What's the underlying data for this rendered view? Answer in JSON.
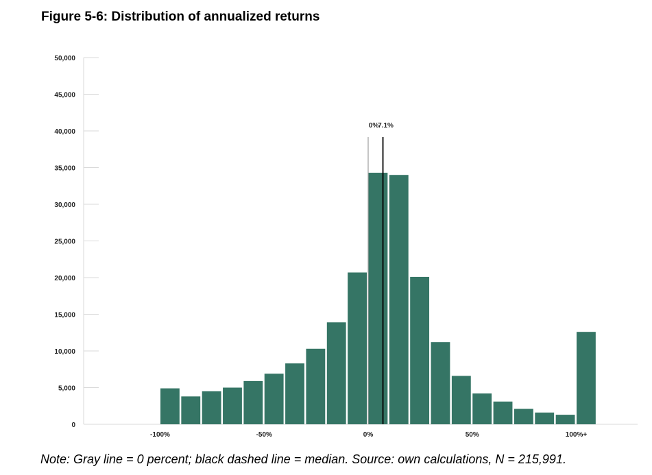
{
  "chart_data": {
    "type": "bar",
    "title": "Figure 5-6: Distribution of annualized returns",
    "xlabel": "",
    "ylabel": "",
    "ylim": [
      0,
      50000
    ],
    "y_ticks": [
      "0",
      "5,000",
      "10,000",
      "15,000",
      "20,000",
      "25,000",
      "30,000",
      "35,000",
      "40,000",
      "45,000",
      "50,000"
    ],
    "y_tick_values": [
      0,
      5000,
      10000,
      15000,
      20000,
      25000,
      30000,
      35000,
      40000,
      45000,
      50000
    ],
    "x_tick_labels": [
      "-100%",
      "-50%",
      "0%",
      "50%",
      "100%+"
    ],
    "x_tick_values": [
      -100,
      -50,
      0,
      50,
      100
    ],
    "bin_width": 10,
    "bin_starts": [
      -100,
      -90,
      -80,
      -70,
      -60,
      -50,
      -40,
      -30,
      -20,
      -10,
      0,
      10,
      20,
      30,
      40,
      50,
      60,
      70,
      80,
      90,
      100
    ],
    "values": [
      4900,
      3800,
      4500,
      5000,
      5900,
      6900,
      8300,
      10300,
      13900,
      20700,
      34300,
      34000,
      20100,
      11200,
      6600,
      4200,
      3100,
      2100,
      1600,
      1300,
      12600
    ],
    "bar_color": "#357565",
    "annotations": [
      {
        "name": "zero-line",
        "x": 0,
        "label": "0%",
        "color": "#9e9e9e"
      },
      {
        "name": "median-line",
        "x": 7.1,
        "label": "7.1%",
        "color": "#000000"
      }
    ],
    "grid": false
  },
  "note": "Note: Gray line = 0 percent; black dashed line = median. Source: own calculations, N = 215,991."
}
